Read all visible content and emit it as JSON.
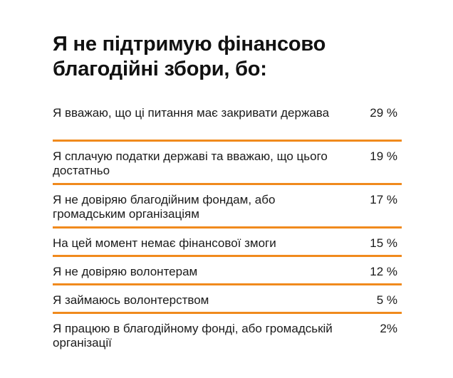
{
  "chart_data": {
    "type": "table",
    "title": "Я не підтримую фінансово благодійні збори, бо:",
    "accent_color": "#f08a1d",
    "rows": [
      {
        "label": "Я вважаю, що ці питання має закривати держава",
        "value": 29,
        "display": "29 %"
      },
      {
        "label": "Я сплачую податки державі та вважаю, що цього достатньо",
        "value": 19,
        "display": "19 %"
      },
      {
        "label": "Я не довіряю благодійним фондам, або громадським організаціям",
        "value": 17,
        "display": "17 %"
      },
      {
        "label": "На цей момент немає фінансової змоги",
        "value": 15,
        "display": "15 %"
      },
      {
        "label": "Я не довіряю волонтерам",
        "value": 12,
        "display": "12 %"
      },
      {
        "label": "Я займаюсь волонтерством",
        "value": 5,
        "display": "5 %"
      },
      {
        "label": "Я працюю в благодійному фонді, або громадській організації",
        "value": 2,
        "display": "2%"
      }
    ]
  }
}
